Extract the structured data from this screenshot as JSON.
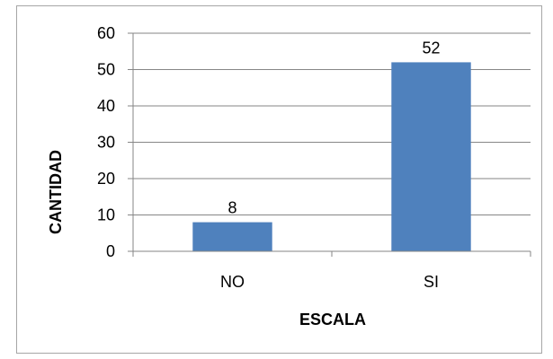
{
  "chart_data": {
    "type": "bar",
    "categories": [
      "NO",
      "SI"
    ],
    "values": [
      8,
      52
    ],
    "xlabel": "ESCALA",
    "ylabel": "CANTIDAD",
    "ylim": [
      0,
      60
    ],
    "yticks": [
      0,
      10,
      20,
      30,
      40,
      50,
      60
    ],
    "grid": true,
    "legend": "none",
    "colors": {
      "bar": "#4f81bd",
      "grid": "#868686",
      "axis": "#868686",
      "border": "#a6a6a6"
    }
  }
}
